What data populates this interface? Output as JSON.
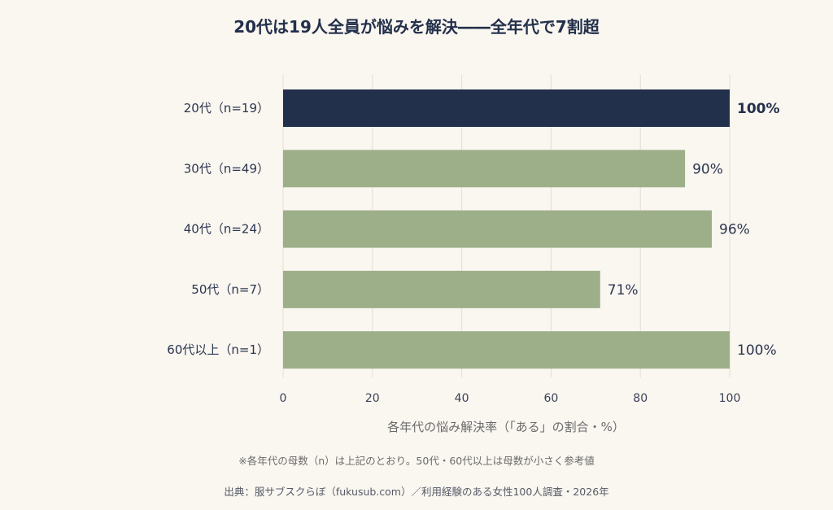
{
  "chart_data": {
    "type": "bar",
    "orientation": "horizontal",
    "title": "20代は19人全員が悩みを解決――全年代で7割超",
    "categories": [
      "20代（n=19）",
      "30代（n=49）",
      "40代（n=24）",
      "50代（n=7）",
      "60代以上（n=1）"
    ],
    "values": [
      100,
      90,
      96,
      71,
      100
    ],
    "value_labels": [
      "100%",
      "90%",
      "96%",
      "71%",
      "100%"
    ],
    "highlight_index": 0,
    "xlabel": "各年代の悩み解決率（「ある」の割合・%）",
    "xlim": [
      0,
      100
    ],
    "xticks": [
      0,
      20,
      40,
      60,
      80,
      100
    ],
    "xtick_labels": [
      "0",
      "20",
      "40",
      "60",
      "80",
      "100"
    ],
    "grid": true,
    "colors": {
      "highlight": "#23304b",
      "default": "#9daf89",
      "grid": "#e4ded4"
    }
  },
  "footnote": "※各年代の母数（n）は上記のとおり。50代・60代以上は母数が小さく参考値",
  "source": "出典：服サブスクらぼ（fukusub.com）／利用経験のある女性100人調査・2026年"
}
